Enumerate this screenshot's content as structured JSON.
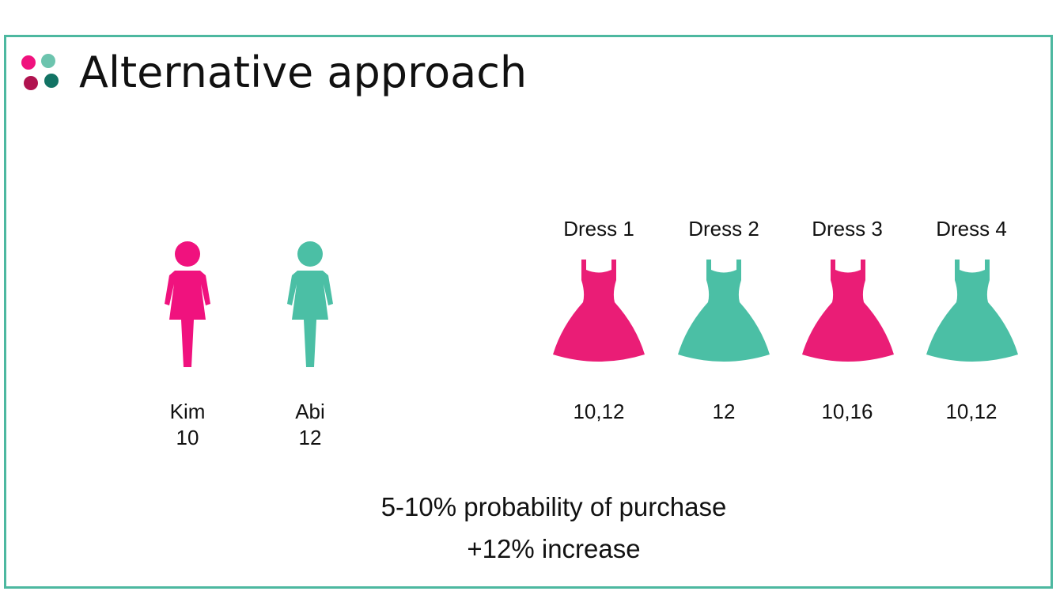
{
  "title": "Alternative approach",
  "colors": {
    "pink": "#f0127e",
    "dress_pink": "#ea1d76",
    "teal": "#4bbfa5",
    "dark_red": "#b0134f",
    "dark_teal": "#127364",
    "border": "#4db8a0"
  },
  "people": [
    {
      "name": "Kim",
      "size": "10",
      "icon": "woman-icon",
      "color": "pink"
    },
    {
      "name": "Abi",
      "size": "12",
      "icon": "woman-icon",
      "color": "teal"
    }
  ],
  "dresses": [
    {
      "name": "Dress 1",
      "sizes": "10,12",
      "icon": "dress-icon",
      "color": "pink"
    },
    {
      "name": "Dress 2",
      "sizes": "12",
      "icon": "dress-icon",
      "color": "teal"
    },
    {
      "name": "Dress 3",
      "sizes": "10,16",
      "icon": "dress-icon",
      "color": "pink"
    },
    {
      "name": "Dress 4",
      "sizes": "10,12",
      "icon": "dress-icon",
      "color": "teal"
    }
  ],
  "summary": {
    "line1": "5-10% probability of purchase",
    "line2": "+12% increase"
  }
}
